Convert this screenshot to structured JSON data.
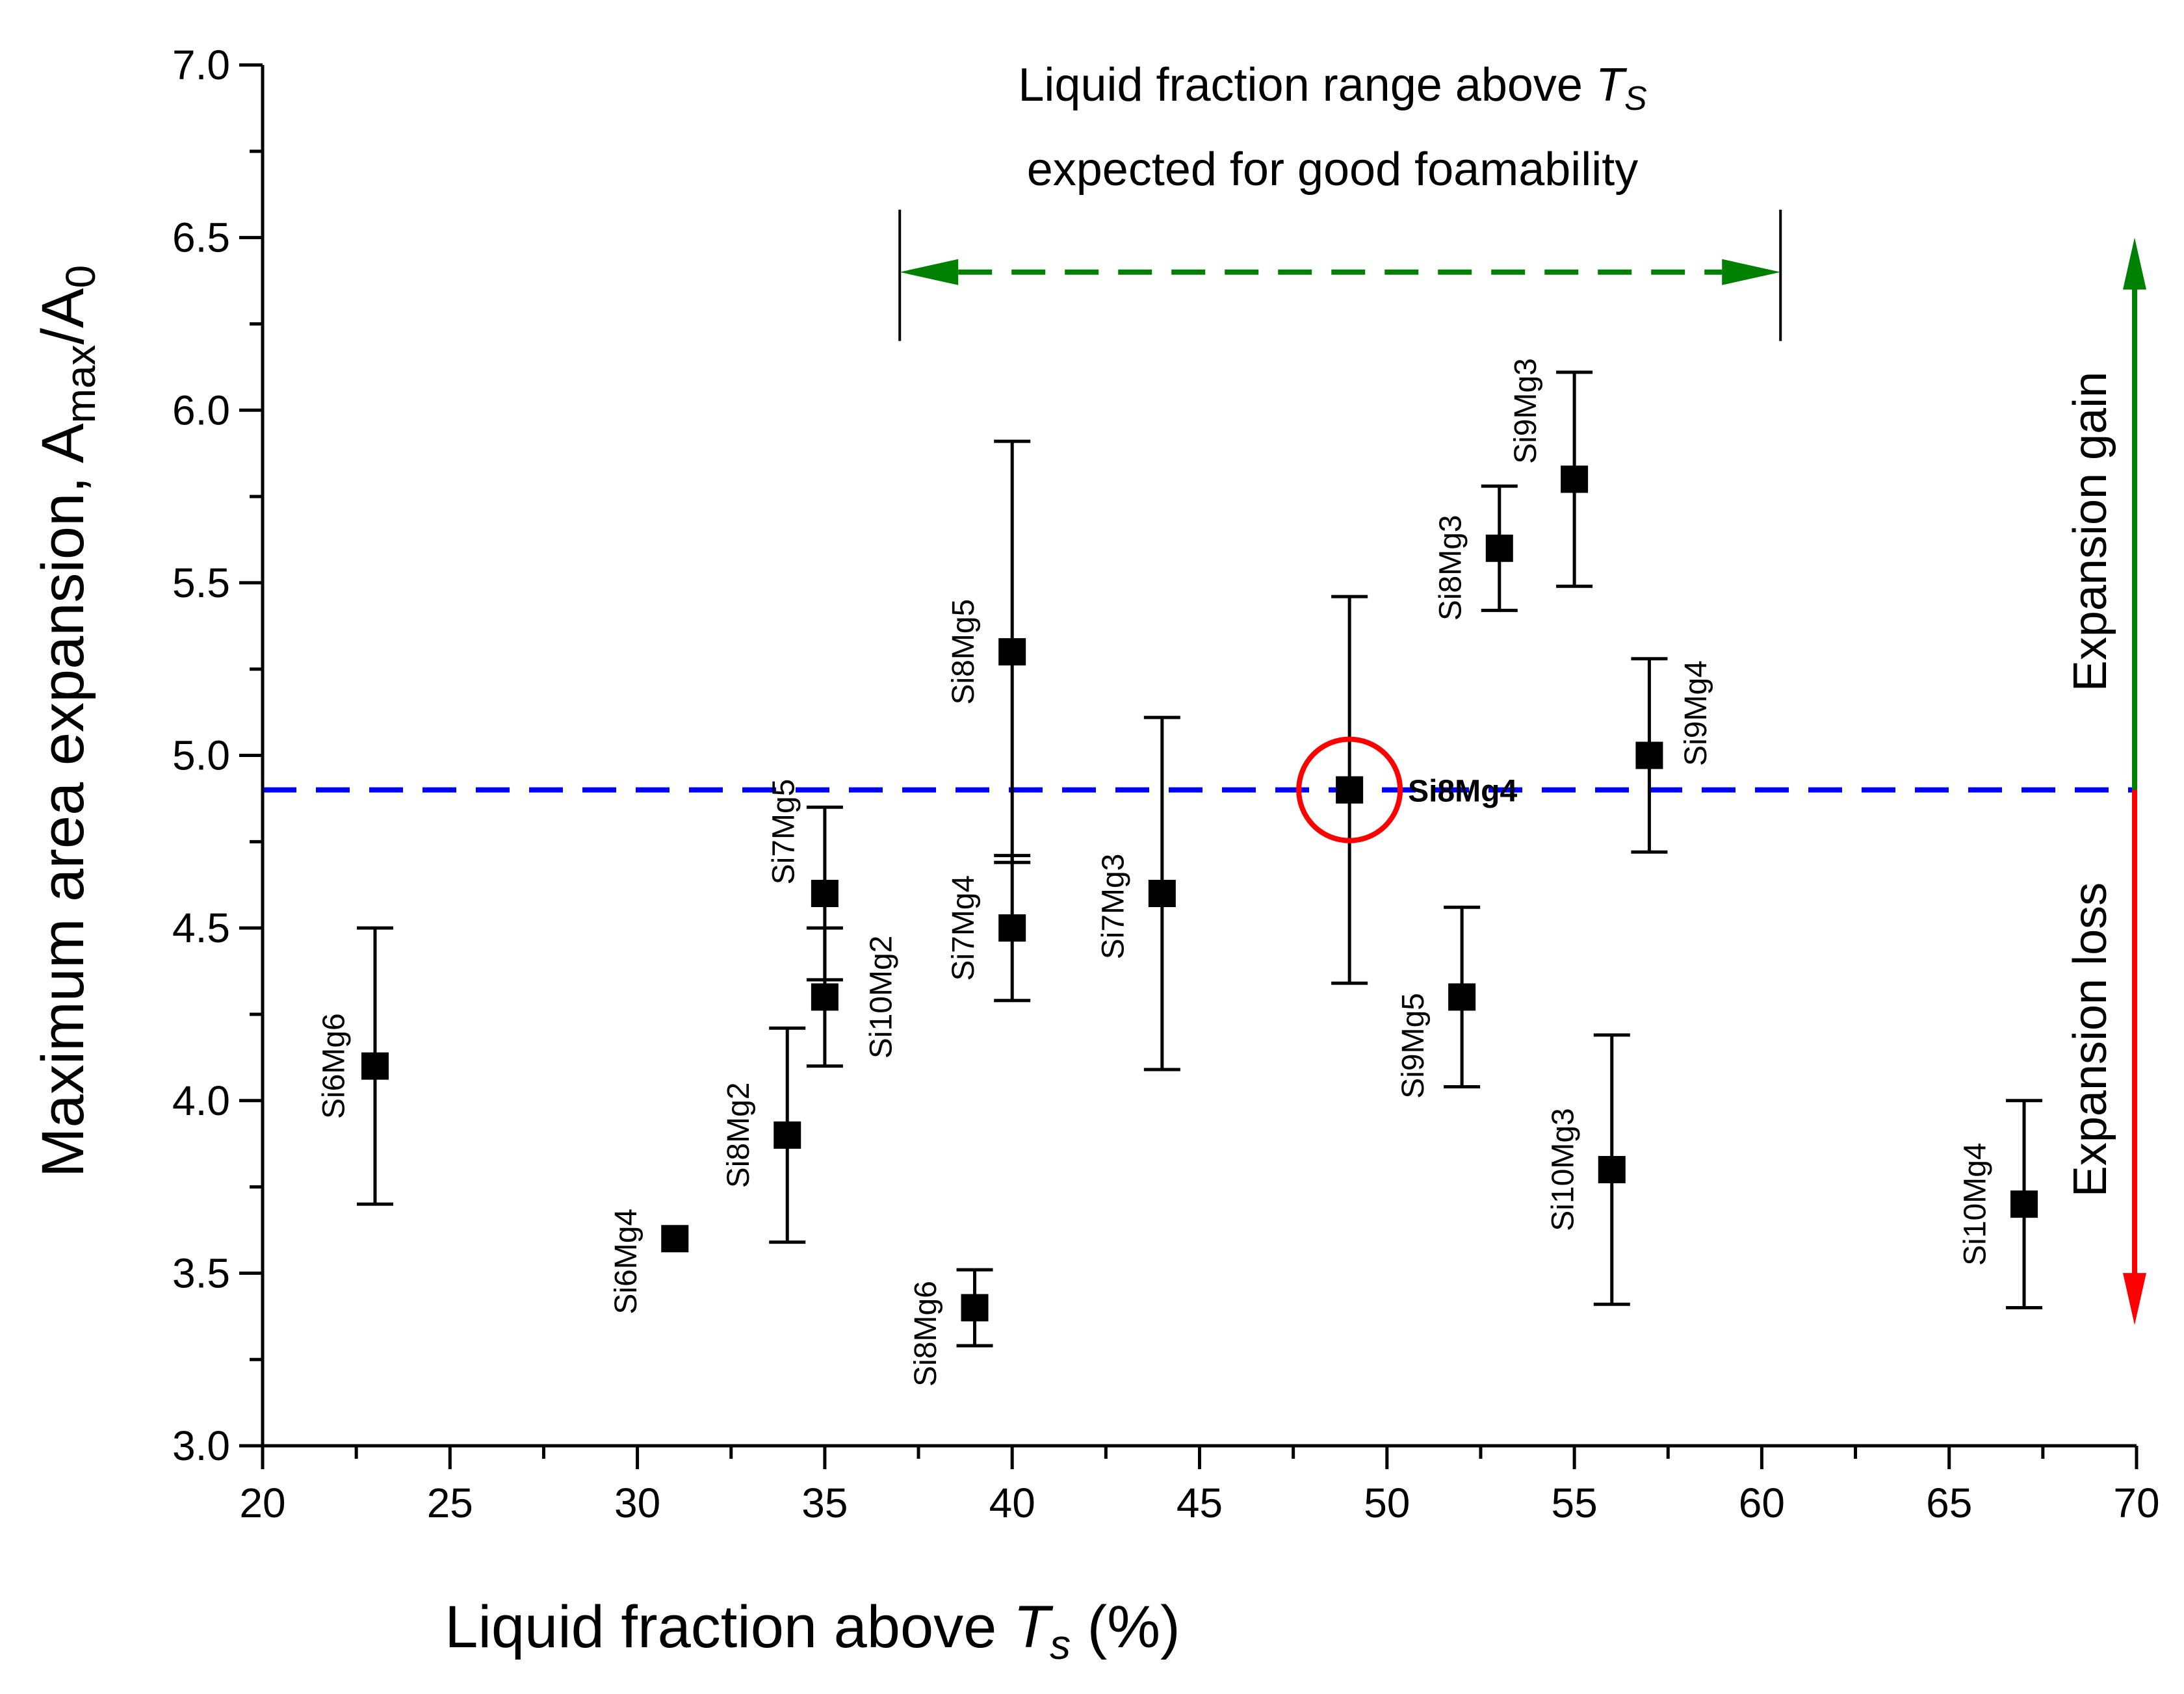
{
  "chart_data": {
    "type": "scatter",
    "xlabel": "Liquid fraction above ",
    "xlabel_italic": "T",
    "xlabel_sub": "s",
    "xlabel_unit": " (%)",
    "ylabel": "Maximum area expansion, A",
    "ylabel_sub1": "max",
    "ylabel_mid": "/A",
    "ylabel_sub2": "0",
    "xlim": [
      20,
      70
    ],
    "ylim": [
      3.0,
      7.0
    ],
    "x_major_ticks": [
      20,
      25,
      30,
      35,
      40,
      45,
      50,
      55,
      60,
      65,
      70
    ],
    "x_tick_labels": [
      "20",
      "25",
      "30",
      "35",
      "40",
      "45",
      "50",
      "55",
      "60",
      "65",
      "70"
    ],
    "y_major_ticks": [
      3.0,
      3.5,
      4.0,
      4.5,
      5.0,
      5.5,
      6.0,
      6.5,
      7.0
    ],
    "y_tick_labels": [
      "3.0",
      "3.5",
      "4.0",
      "4.5",
      "5.0",
      "5.5",
      "6.0",
      "6.5",
      "7.0"
    ],
    "grid": false,
    "points": [
      {
        "label": "Si6Mg6",
        "x": 23,
        "y": 4.1,
        "ylo": 3.7,
        "yhi": 4.5
      },
      {
        "label": "Si6Mg4",
        "x": 31,
        "y": 3.6,
        "ylo": 3.6,
        "yhi": 3.6
      },
      {
        "label": "Si8Mg2",
        "x": 34,
        "y": 3.9,
        "ylo": 3.59,
        "yhi": 4.21
      },
      {
        "label": "Si7Mg5",
        "x": 35,
        "y": 4.6,
        "ylo": 4.35,
        "yhi": 4.85
      },
      {
        "label": "Si10Mg2",
        "x": 35,
        "y": 4.3,
        "ylo": 4.1,
        "yhi": 4.5
      },
      {
        "label": "Si8Mg6",
        "x": 39,
        "y": 3.4,
        "ylo": 3.29,
        "yhi": 3.51
      },
      {
        "label": "Si8Mg5",
        "x": 40,
        "y": 5.3,
        "ylo": 4.69,
        "yhi": 5.91
      },
      {
        "label": "Si7Mg4",
        "x": 40,
        "y": 4.5,
        "ylo": 4.29,
        "yhi": 4.71
      },
      {
        "label": "Si7Mg3",
        "x": 44,
        "y": 4.6,
        "ylo": 4.09,
        "yhi": 5.11
      },
      {
        "label": "Si8Mg4",
        "x": 49,
        "y": 4.9,
        "ylo": 4.34,
        "yhi": 5.46,
        "highlight": true
      },
      {
        "label": "Si9Mg5",
        "x": 52,
        "y": 4.3,
        "ylo": 4.04,
        "yhi": 4.56
      },
      {
        "label": "Si8Mg3",
        "x": 53,
        "y": 5.6,
        "ylo": 5.42,
        "yhi": 5.78
      },
      {
        "label": "Si9Mg3",
        "x": 55,
        "y": 5.8,
        "ylo": 5.49,
        "yhi": 6.11
      },
      {
        "label": "Si10Mg3",
        "x": 56,
        "y": 3.8,
        "ylo": 3.41,
        "yhi": 4.19
      },
      {
        "label": "Si9Mg4",
        "x": 57,
        "y": 5.0,
        "ylo": 4.72,
        "yhi": 5.28
      },
      {
        "label": "Si10Mg4",
        "x": 67,
        "y": 3.7,
        "ylo": 3.4,
        "yhi": 4.0
      }
    ],
    "reference_line": {
      "y": 4.9,
      "color": "#0000ff",
      "style": "dashed"
    },
    "range_annotation": {
      "x_start": 37,
      "x_end": 60.5,
      "y": 6.4,
      "color": "#008000",
      "text_line1": "Liquid fraction range above ",
      "text_line1_italic": "T",
      "text_line1_sub": "S",
      "text_line2": "expected for good foamability"
    },
    "side_arrows": {
      "x": 70,
      "gain_label": "Expansion gain",
      "gain_color": "#008000",
      "gain_y_to": 6.5,
      "loss_label": "Expansion loss",
      "loss_color": "#ff0000",
      "loss_y_to": 3.35
    },
    "highlight_color": "#ff0000"
  }
}
